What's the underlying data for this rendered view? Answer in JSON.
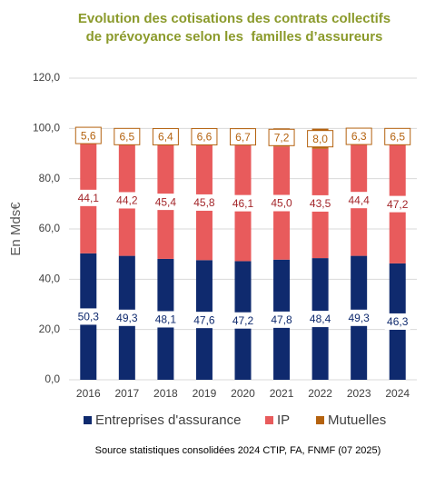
{
  "chart_data": {
    "type": "stacked_bar",
    "title": [
      "Evolution des cotisations des contrats collectifs",
      "de prévoyance selon les  familles d’assureurs"
    ],
    "y_label": "En Mds€",
    "source": "Source statistiques consolidées 2024 CTIP, FA, FNMF (07 2025)",
    "categories": [
      "2016",
      "2017",
      "2018",
      "2019",
      "2020",
      "2021",
      "2022",
      "2023",
      "2024"
    ],
    "series": [
      {
        "name": "Entreprises d'assurance",
        "color": "#0f2a6e",
        "label_color": "#0f2a6e",
        "values": [
          50.3,
          49.3,
          48.1,
          47.6,
          47.2,
          47.8,
          48.4,
          49.3,
          46.3
        ],
        "value_labels": [
          "50,3",
          "49,3",
          "48,1",
          "47,6",
          "47,2",
          "47,8",
          "48,4",
          "49,3",
          "46,3"
        ]
      },
      {
        "name": "IP",
        "color": "#e85b5c",
        "label_color": "#a3262a",
        "values": [
          44.1,
          44.2,
          45.4,
          45.8,
          46.1,
          45.0,
          43.5,
          44.4,
          47.2
        ],
        "value_labels": [
          "44,1",
          "44,2",
          "45,4",
          "45,8",
          "46,1",
          "45,0",
          "43,5",
          "44,4",
          "47,2"
        ]
      },
      {
        "name": "Mutuelles",
        "color": "#b4620f",
        "label_color": "#b4620f",
        "values": [
          5.6,
          6.5,
          6.4,
          6.6,
          6.7,
          7.2,
          8.0,
          6.3,
          6.5
        ],
        "value_labels": [
          "5,6",
          "6,5",
          "6,4",
          "6,6",
          "6,7",
          "7,2",
          "8,0",
          "6,3",
          "6,5"
        ]
      }
    ],
    "ylim": [
      0,
      120
    ],
    "yticks": [
      {
        "value": 0,
        "label": "0,0"
      },
      {
        "value": 20,
        "label": "20,0"
      },
      {
        "value": 40,
        "label": "40,0"
      },
      {
        "value": 60,
        "label": "60,0"
      },
      {
        "value": 80,
        "label": "80,0"
      },
      {
        "value": 100,
        "label": "100,0"
      },
      {
        "value": 120,
        "label": "120,0"
      }
    ],
    "grid": true,
    "legend": "bottom"
  }
}
